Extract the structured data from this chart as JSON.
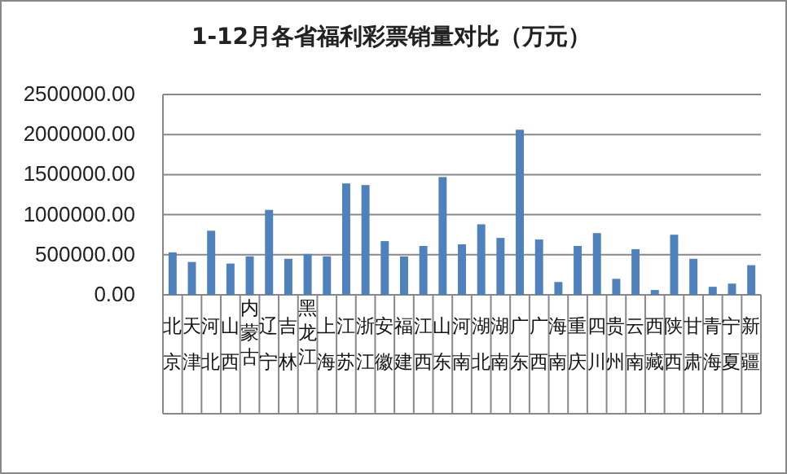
{
  "chart_data": {
    "type": "bar",
    "title": "1-12月各省福利彩票销量对比（万元）",
    "categories": [
      "北京",
      "天津",
      "河北",
      "山西",
      "内蒙古",
      "辽宁",
      "吉林",
      "黑龙江",
      "上海",
      "江苏",
      "浙江",
      "安徽",
      "福建",
      "江西",
      "山东",
      "河南",
      "湖北",
      "湖南",
      "广东",
      "广西",
      "海南",
      "重庆",
      "四川",
      "贵州",
      "云南",
      "西藏",
      "陕西",
      "甘肃",
      "青海",
      "宁夏",
      "新疆"
    ],
    "values": [
      530000,
      410000,
      800000,
      390000,
      480000,
      1060000,
      450000,
      510000,
      480000,
      1390000,
      1370000,
      670000,
      480000,
      610000,
      1470000,
      630000,
      880000,
      710000,
      2060000,
      690000,
      160000,
      610000,
      770000,
      200000,
      570000,
      60000,
      750000,
      450000,
      100000,
      140000,
      370000
    ],
    "color": "#4f81bd",
    "ylim": [
      0,
      2500000
    ],
    "yticks": [
      {
        "value": 0,
        "label": "0.00"
      },
      {
        "value": 500000,
        "label": "500000.00"
      },
      {
        "value": 1000000,
        "label": "1000000.00"
      },
      {
        "value": 1500000,
        "label": "1500000.00"
      },
      {
        "value": 2000000,
        "label": "2000000.00"
      },
      {
        "value": 2500000,
        "label": "2500000.00"
      }
    ],
    "grid": "y"
  }
}
